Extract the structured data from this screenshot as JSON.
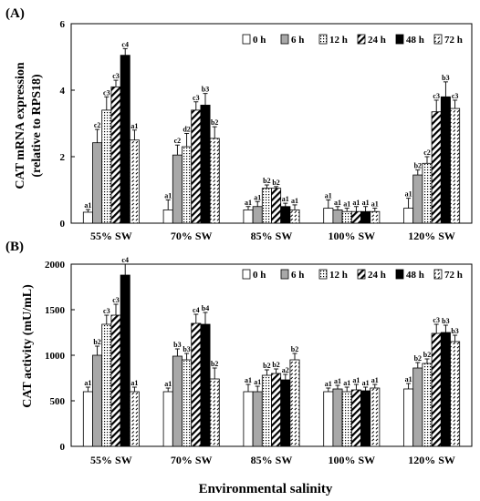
{
  "xlabel": "Environmental salinity",
  "colors": {
    "h0": "#ffffff",
    "h6": "#a8a8a8",
    "h12": "dots",
    "h24": "diagonal",
    "h48": "#000000",
    "h72": "dash-hatch"
  },
  "chart_data": [
    {
      "type": "bar",
      "panel": "(A)",
      "title": "",
      "ylabel": "CAT mRNA expression (relative to RPS18)",
      "ylabel_lines": [
        "CAT mRNA expression",
        "(relative to RPS18)"
      ],
      "xlabel": "",
      "ylim": [
        0,
        6
      ],
      "yticks": [
        "0",
        "2",
        "4",
        "6"
      ],
      "categories": [
        "55% SW",
        "70% SW",
        "85% SW",
        "100% SW",
        "120% SW"
      ],
      "legend": [
        "0 h",
        "6 h",
        "12 h",
        "24 h",
        "48 h",
        "72 h"
      ],
      "legend_position": "top-right",
      "series": [
        {
          "name": "0 h",
          "values": [
            0.33,
            0.4,
            0.4,
            0.45,
            0.45
          ],
          "errors": [
            0.08,
            0.3,
            0.1,
            0.25,
            0.3
          ],
          "labels": [
            "a1",
            "a1",
            "a1",
            "a1",
            "a1"
          ]
        },
        {
          "name": "6 h",
          "values": [
            2.42,
            2.05,
            0.5,
            0.4,
            1.45
          ],
          "errors": [
            0.4,
            0.3,
            0.15,
            0.1,
            0.15
          ],
          "labels": [
            "c2",
            "c2",
            "a1",
            "a1",
            "b2"
          ]
        },
        {
          "name": "12 h",
          "values": [
            3.4,
            2.3,
            1.05,
            0.35,
            1.8
          ],
          "errors": [
            0.4,
            0.4,
            0.1,
            0.1,
            0.2
          ],
          "labels": [
            "c3",
            "d2",
            "b2",
            "a1",
            "c2"
          ]
        },
        {
          "name": "24 h",
          "values": [
            4.1,
            3.4,
            1.05,
            0.35,
            3.35
          ],
          "errors": [
            0.2,
            0.25,
            0.05,
            0.15,
            0.35
          ],
          "labels": [
            "c3",
            "c3",
            "b2",
            "a1",
            "c3"
          ]
        },
        {
          "name": "48 h",
          "values": [
            5.05,
            3.55,
            0.5,
            0.35,
            3.8
          ],
          "errors": [
            0.2,
            0.35,
            0.1,
            0.15,
            0.45
          ],
          "labels": [
            "c4",
            "b3",
            "a1",
            "a1",
            "b3"
          ]
        },
        {
          "name": "72 h",
          "values": [
            2.5,
            2.55,
            0.4,
            0.35,
            3.45
          ],
          "errors": [
            0.3,
            0.35,
            0.15,
            0.1,
            0.25
          ],
          "labels": [
            "a1",
            "b2",
            "a1",
            "a1",
            "c3"
          ]
        }
      ]
    },
    {
      "type": "bar",
      "panel": "(B)",
      "title": "",
      "ylabel": "CAT activity (mU/mL)",
      "ylabel_lines": [
        "CAT activity (mU/mL)"
      ],
      "xlabel": "",
      "ylim": [
        0,
        2000
      ],
      "yticks": [
        "0",
        "500",
        "1000",
        "1500",
        "2000"
      ],
      "categories": [
        "55% SW",
        "70% SW",
        "85% SW",
        "100% SW",
        "120% SW"
      ],
      "legend": [
        "0 h",
        "6 h",
        "12 h",
        "24 h",
        "48 h",
        "72 h"
      ],
      "legend_position": "top-right",
      "series": [
        {
          "name": "0 h",
          "values": [
            600,
            600,
            600,
            600,
            630
          ],
          "errors": [
            50,
            40,
            80,
            40,
            60
          ],
          "labels": [
            "a1",
            "a1",
            "a1",
            "a1",
            "a1"
          ]
        },
        {
          "name": "6 h",
          "values": [
            1000,
            990,
            600,
            630,
            860
          ],
          "errors": [
            100,
            80,
            60,
            40,
            60
          ],
          "labels": [
            "b2",
            "b3",
            "a1",
            "a1",
            "b2"
          ]
        },
        {
          "name": "12 h",
          "values": [
            1340,
            950,
            780,
            600,
            910
          ],
          "errors": [
            100,
            70,
            60,
            50,
            50
          ],
          "labels": [
            "c3",
            "b3",
            "b2",
            "a1",
            "b2"
          ]
        },
        {
          "name": "24 h",
          "values": [
            1440,
            1350,
            800,
            620,
            1240
          ],
          "errors": [
            120,
            100,
            50,
            60,
            100
          ],
          "labels": [
            "c3",
            "c4",
            "b2",
            "a1",
            "c3"
          ]
        },
        {
          "name": "48 h",
          "values": [
            1880,
            1340,
            730,
            610,
            1250
          ],
          "errors": [
            120,
            130,
            60,
            40,
            80
          ],
          "labels": [
            "c4",
            "b4",
            "a2",
            "a1",
            "b3"
          ]
        },
        {
          "name": "72 h",
          "values": [
            600,
            740,
            950,
            640,
            1150
          ],
          "errors": [
            50,
            120,
            70,
            40,
            70
          ],
          "labels": [
            "a1",
            "b2",
            "b2",
            "a1",
            "b3"
          ]
        }
      ]
    }
  ]
}
